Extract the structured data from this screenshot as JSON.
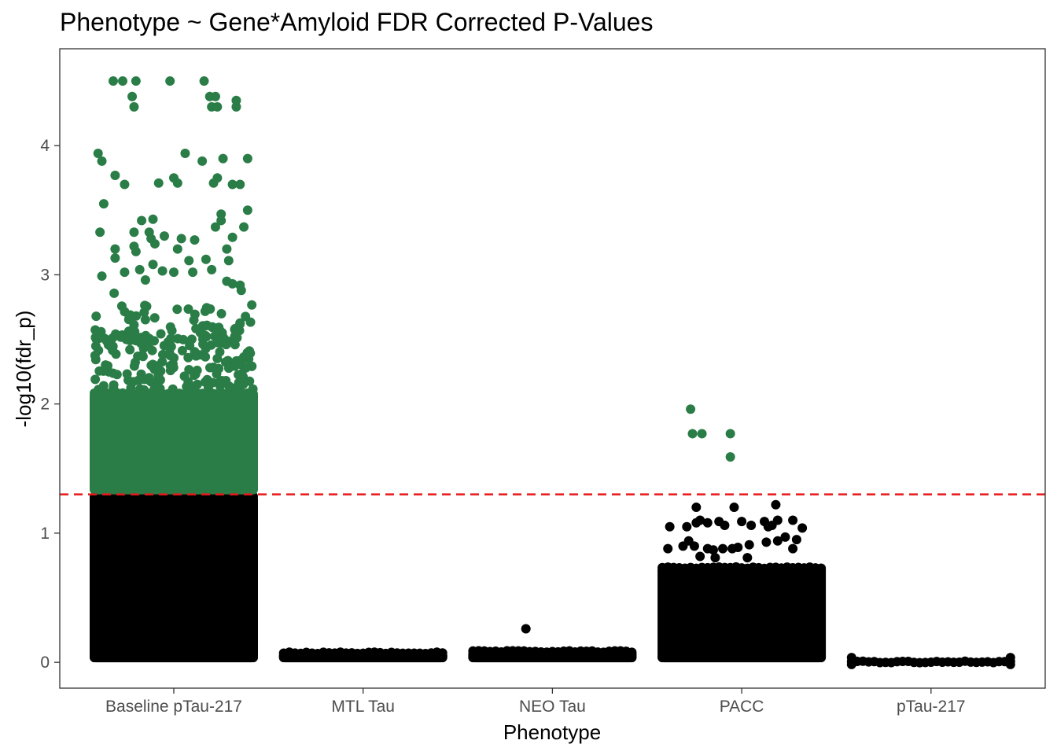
{
  "colors": {
    "significant": "#2a7d47",
    "nonsignificant": "#000000",
    "threshold_line": "#e8191c",
    "panel_border": "#333333",
    "tick": "#333333",
    "background": "#ffffff"
  },
  "chart_data": {
    "type": "scatter",
    "subtype": "jittered strip plot",
    "title": "Phenotype ~ Gene*Amyloid FDR Corrected P-Values",
    "xlabel": "Phenotype",
    "ylabel": "-log10(fdr_p)",
    "categories": [
      "Baseline pTau-217",
      "MTL Tau",
      "NEO Tau",
      "PACC",
      "pTau-217"
    ],
    "ylim": [
      -0.2,
      4.75
    ],
    "yticks": [
      0,
      1,
      2,
      3,
      4
    ],
    "grid": false,
    "legend": "none",
    "threshold": {
      "value": 1.3,
      "style": "dashed",
      "color": "red"
    },
    "series": [
      {
        "category": "Baseline pTau-217",
        "dense_bands": [
          {
            "ymin": 0.0,
            "ymax": 1.3,
            "color": "nonsignificant"
          },
          {
            "ymin": 1.3,
            "ymax": 2.1,
            "color": "significant"
          }
        ],
        "scatter_range": {
          "ymin": 2.1,
          "ymax": 2.9,
          "n": 230,
          "color": "significant"
        },
        "points": [
          {
            "x": -0.32,
            "y": 4.5
          },
          {
            "x": -0.27,
            "y": 4.5
          },
          {
            "x": -0.2,
            "y": 4.5
          },
          {
            "x": -0.22,
            "y": 4.38
          },
          {
            "x": -0.21,
            "y": 4.3
          },
          {
            "x": -0.02,
            "y": 4.5
          },
          {
            "x": 0.16,
            "y": 4.5
          },
          {
            "x": 0.19,
            "y": 4.38
          },
          {
            "x": 0.22,
            "y": 4.38
          },
          {
            "x": 0.2,
            "y": 4.3
          },
          {
            "x": 0.23,
            "y": 4.3
          },
          {
            "x": 0.33,
            "y": 4.35
          },
          {
            "x": 0.33,
            "y": 4.3
          },
          {
            "x": -0.4,
            "y": 3.94
          },
          {
            "x": -0.38,
            "y": 3.88
          },
          {
            "x": -0.31,
            "y": 3.77
          },
          {
            "x": -0.26,
            "y": 3.7
          },
          {
            "x": -0.08,
            "y": 3.71
          },
          {
            "x": 0.0,
            "y": 3.75
          },
          {
            "x": 0.02,
            "y": 3.71
          },
          {
            "x": 0.06,
            "y": 3.94
          },
          {
            "x": 0.15,
            "y": 3.88
          },
          {
            "x": 0.21,
            "y": 3.71
          },
          {
            "x": 0.23,
            "y": 3.75
          },
          {
            "x": 0.26,
            "y": 3.9
          },
          {
            "x": 0.31,
            "y": 3.7
          },
          {
            "x": 0.35,
            "y": 3.7
          },
          {
            "x": 0.39,
            "y": 3.9
          },
          {
            "x": -0.37,
            "y": 3.55
          },
          {
            "x": -0.17,
            "y": 3.42
          },
          {
            "x": -0.11,
            "y": 3.43
          },
          {
            "x": -0.21,
            "y": 3.33
          },
          {
            "x": -0.13,
            "y": 3.33
          },
          {
            "x": -0.12,
            "y": 3.28
          },
          {
            "x": -0.05,
            "y": 3.3
          },
          {
            "x": 0.04,
            "y": 3.28
          },
          {
            "x": 0.11,
            "y": 3.27
          },
          {
            "x": 0.25,
            "y": 3.42
          },
          {
            "x": 0.25,
            "y": 3.47
          },
          {
            "x": 0.22,
            "y": 3.37
          },
          {
            "x": 0.31,
            "y": 3.29
          },
          {
            "x": 0.37,
            "y": 3.37
          },
          {
            "x": 0.39,
            "y": 3.5
          },
          {
            "x": -0.39,
            "y": 3.33
          },
          {
            "x": -0.31,
            "y": 3.2
          },
          {
            "x": -0.21,
            "y": 3.22
          },
          {
            "x": -0.2,
            "y": 3.18
          },
          {
            "x": -0.1,
            "y": 3.24
          },
          {
            "x": 0.02,
            "y": 3.2
          },
          {
            "x": 0.08,
            "y": 3.11
          },
          {
            "x": 0.17,
            "y": 3.12
          },
          {
            "x": 0.28,
            "y": 3.2
          },
          {
            "x": 0.29,
            "y": 3.11
          },
          {
            "x": -0.31,
            "y": 3.13
          },
          {
            "x": -0.38,
            "y": 2.99
          },
          {
            "x": -0.26,
            "y": 3.02
          },
          {
            "x": -0.18,
            "y": 3.04
          },
          {
            "x": -0.11,
            "y": 3.08
          },
          {
            "x": -0.06,
            "y": 3.03
          },
          {
            "x": 0.0,
            "y": 3.02
          },
          {
            "x": 0.1,
            "y": 3.02
          },
          {
            "x": 0.2,
            "y": 3.04
          },
          {
            "x": 0.31,
            "y": 2.93
          },
          {
            "x": 0.35,
            "y": 2.92
          },
          {
            "x": -0.15,
            "y": 2.96
          },
          {
            "x": 0.28,
            "y": 2.95
          }
        ]
      },
      {
        "category": "MTL Tau",
        "dense_bands": [
          {
            "ymin": 0.0,
            "ymax": 0.09,
            "color": "nonsignificant"
          }
        ],
        "points": []
      },
      {
        "category": "NEO Tau",
        "dense_bands": [
          {
            "ymin": 0.0,
            "ymax": 0.1,
            "color": "nonsignificant"
          }
        ],
        "points": [
          {
            "x": -0.14,
            "y": 0.26
          }
        ]
      },
      {
        "category": "PACC",
        "dense_bands": [
          {
            "ymin": 0.0,
            "ymax": 0.75,
            "color": "nonsignificant"
          }
        ],
        "points": [
          {
            "x": -0.27,
            "y": 1.96
          },
          {
            "x": -0.26,
            "y": 1.77
          },
          {
            "x": -0.21,
            "y": 1.77
          },
          {
            "x": -0.06,
            "y": 1.77
          },
          {
            "x": -0.06,
            "y": 1.59
          },
          {
            "x": -0.24,
            "y": 1.2
          },
          {
            "x": -0.04,
            "y": 1.2
          },
          {
            "x": 0.18,
            "y": 1.22
          },
          {
            "x": -0.38,
            "y": 1.05
          },
          {
            "x": -0.29,
            "y": 1.05
          },
          {
            "x": -0.24,
            "y": 1.08
          },
          {
            "x": -0.22,
            "y": 1.1
          },
          {
            "x": -0.18,
            "y": 1.08
          },
          {
            "x": -0.12,
            "y": 1.09
          },
          {
            "x": -0.09,
            "y": 1.06
          },
          {
            "x": 0.0,
            "y": 1.09
          },
          {
            "x": 0.05,
            "y": 1.06
          },
          {
            "x": 0.12,
            "y": 1.09
          },
          {
            "x": 0.16,
            "y": 1.06
          },
          {
            "x": 0.19,
            "y": 1.1
          },
          {
            "x": 0.27,
            "y": 1.1
          },
          {
            "x": 0.32,
            "y": 1.04
          },
          {
            "x": 0.14,
            "y": 1.05
          },
          {
            "x": -0.39,
            "y": 0.88
          },
          {
            "x": -0.31,
            "y": 0.9
          },
          {
            "x": -0.28,
            "y": 0.94
          },
          {
            "x": -0.25,
            "y": 0.9
          },
          {
            "x": -0.18,
            "y": 0.88
          },
          {
            "x": -0.15,
            "y": 0.87
          },
          {
            "x": -0.1,
            "y": 0.88
          },
          {
            "x": -0.05,
            "y": 0.88
          },
          {
            "x": -0.02,
            "y": 0.89
          },
          {
            "x": 0.04,
            "y": 0.91
          },
          {
            "x": 0.13,
            "y": 0.93
          },
          {
            "x": 0.19,
            "y": 0.94
          },
          {
            "x": 0.23,
            "y": 0.97
          },
          {
            "x": 0.27,
            "y": 0.88
          },
          {
            "x": 0.29,
            "y": 0.95
          },
          {
            "x": -0.14,
            "y": 0.81
          },
          {
            "x": 0.03,
            "y": 0.81
          },
          {
            "x": -0.22,
            "y": 0.82
          }
        ]
      },
      {
        "category": "pTau-217",
        "dense_bands": [
          {
            "ymin": 0.0,
            "ymax": 0.02,
            "color": "nonsignificant"
          }
        ],
        "points": []
      }
    ]
  }
}
